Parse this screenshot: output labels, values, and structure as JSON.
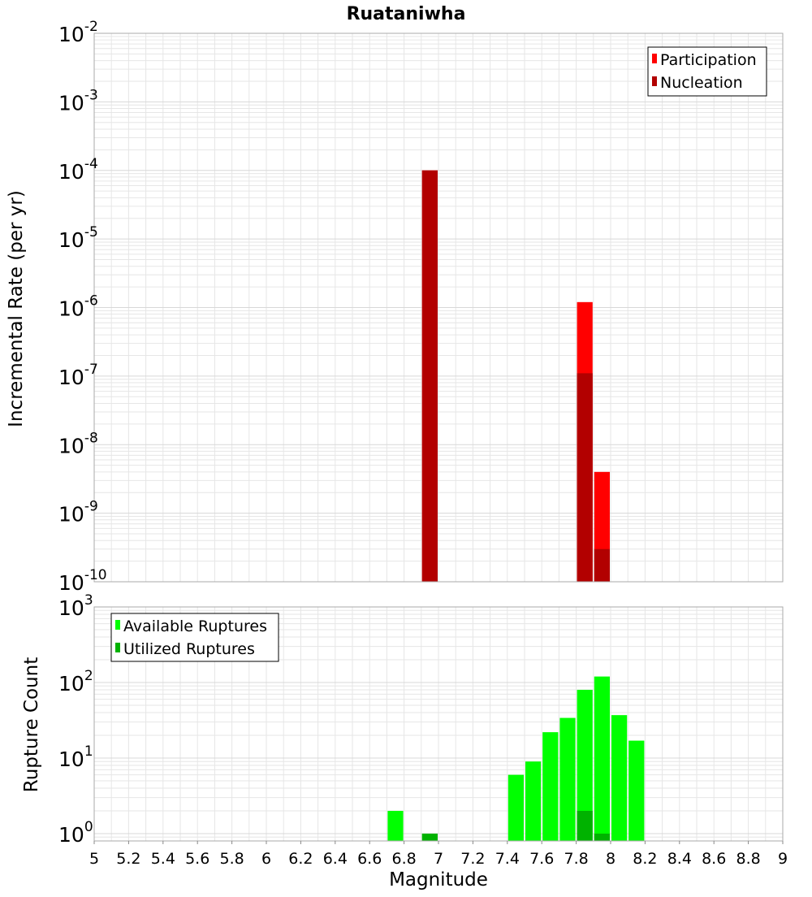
{
  "title": "Ruataniwha",
  "colors": {
    "participation": "#ff0000",
    "nucleation": "#b20000",
    "available": "#00ff00",
    "utilized": "#00b200",
    "grid": "#e6e6e6",
    "frame": "#aaaaaa"
  },
  "chart_data": [
    {
      "type": "bar",
      "name": "rate-panel",
      "ylabel": "Incremental Rate (per yr)",
      "yscale": "log",
      "ylim": [
        1e-10,
        0.01
      ],
      "ytick_exponents": [
        "-10",
        "-9",
        "-8",
        "-7",
        "-6",
        "-5",
        "-4",
        "-3",
        "-2"
      ],
      "xlim": [
        5,
        9
      ],
      "bin_width": 0.1,
      "grid": true,
      "legend": "top-right",
      "series": [
        {
          "name": "Participation",
          "x": [
            6.95,
            7.85,
            7.95
          ],
          "values": [
            0.0001,
            1.2e-06,
            4e-09
          ]
        },
        {
          "name": "Nucleation",
          "x": [
            6.95,
            7.85,
            7.95
          ],
          "values": [
            0.0001,
            1.1e-07,
            3e-10
          ]
        }
      ]
    },
    {
      "type": "bar",
      "name": "count-panel",
      "ylabel": "Rupture Count",
      "xlabel": "Magnitude",
      "yscale": "log",
      "ylim": [
        0.8,
        1000
      ],
      "ytick_exponents": [
        "0",
        "1",
        "2",
        "3"
      ],
      "xlim": [
        5,
        9
      ],
      "xticks": [
        "5",
        "5.2",
        "5.4",
        "5.6",
        "5.8",
        "6",
        "6.2",
        "6.4",
        "6.6",
        "6.8",
        "7",
        "7.2",
        "7.4",
        "7.6",
        "7.8",
        "8",
        "8.2",
        "8.4",
        "8.6",
        "8.8",
        "9"
      ],
      "bin_width": 0.1,
      "grid": true,
      "legend": "top-left",
      "series": [
        {
          "name": "Available Ruptures",
          "x": [
            6.75,
            6.95,
            7.45,
            7.55,
            7.65,
            7.75,
            7.85,
            7.95,
            8.05,
            8.15
          ],
          "values": [
            2,
            1,
            6,
            9,
            22,
            34,
            80,
            120,
            37,
            17
          ]
        },
        {
          "name": "Utilized Ruptures",
          "x": [
            6.95,
            7.85,
            7.95
          ],
          "values": [
            1,
            2,
            1
          ]
        }
      ]
    }
  ]
}
